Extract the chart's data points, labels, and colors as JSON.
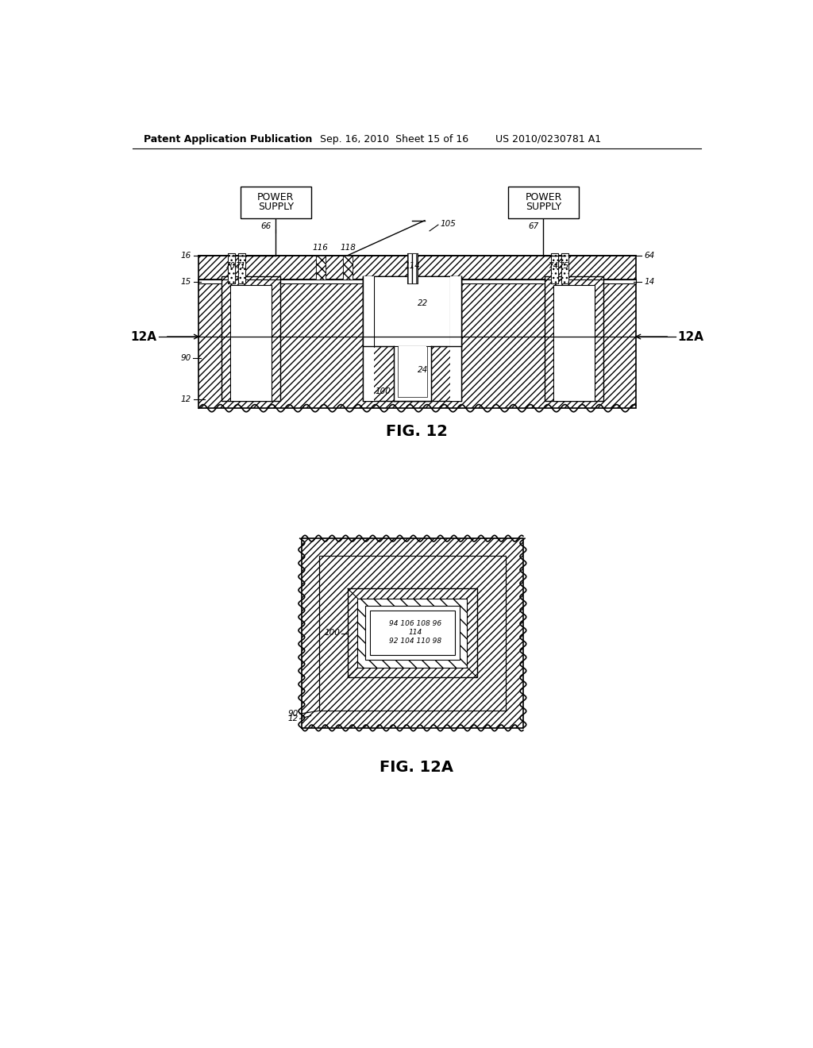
{
  "header_left": "Patent Application Publication",
  "header_mid": "Sep. 16, 2010  Sheet 15 of 16",
  "header_right": "US 2010/0230781 A1",
  "fig12_caption": "FIG. 12",
  "fig12a_caption": "FIG. 12A",
  "bg_color": "#ffffff"
}
